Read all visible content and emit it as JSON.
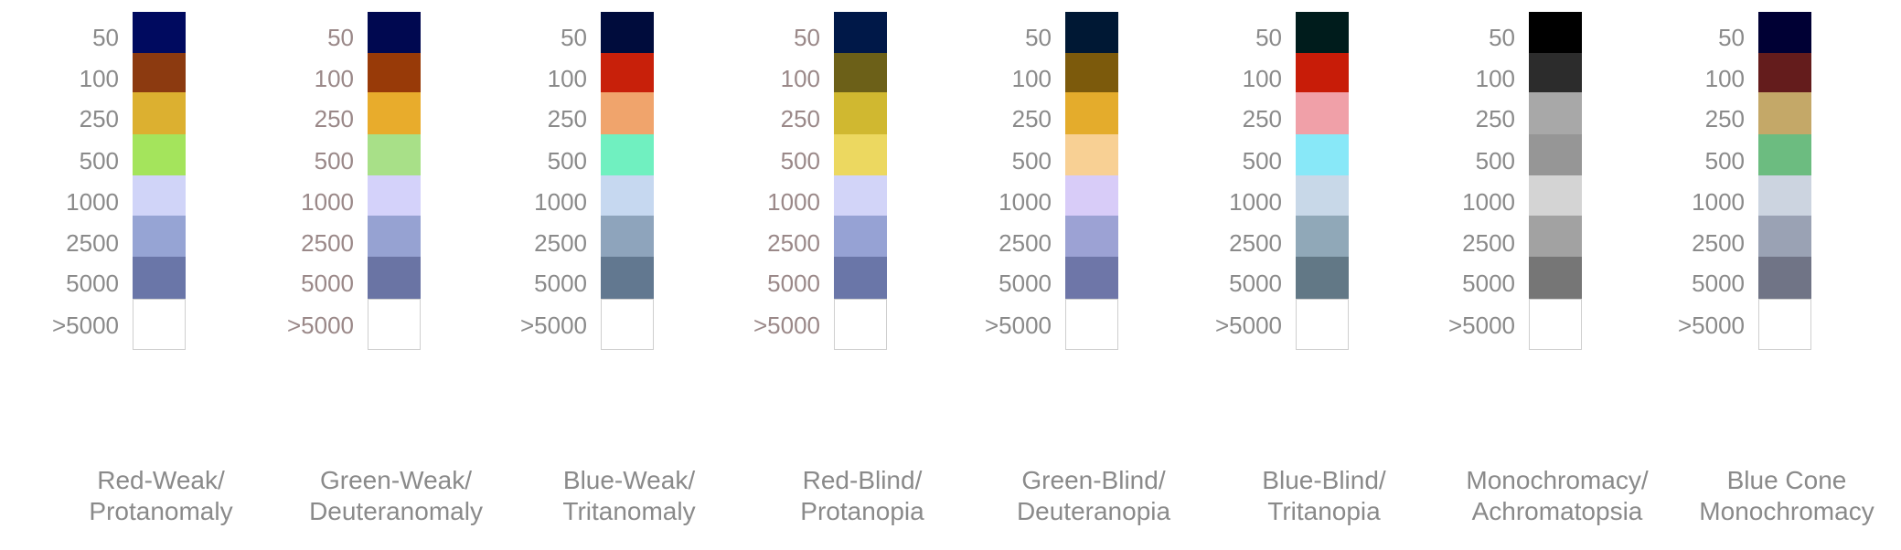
{
  "levels": [
    "50",
    "100",
    "250",
    "500",
    "1000",
    "2500",
    "5000",
    ">5000"
  ],
  "panels": [
    {
      "caption_line1": "Red-Weak/",
      "caption_line2": "Protanomaly",
      "colors": [
        "#000a5f",
        "#8c3a10",
        "#dcb030",
        "#a4e45c",
        "#d0d4f8",
        "#96a4d4",
        "#6a76a8",
        "#ffffff"
      ]
    },
    {
      "caption_line1": "Green-Weak/",
      "caption_line2": "Deuteranomaly",
      "colors": [
        "#000850",
        "#983a08",
        "#e8ac2c",
        "#a8e088",
        "#d4d2fa",
        "#96a2d2",
        "#6a74a4",
        "#ffffff"
      ]
    },
    {
      "caption_line1": "Blue-Weak/",
      "caption_line2": "Tritanomaly",
      "colors": [
        "#000c3c",
        "#c8200a",
        "#f0a46c",
        "#70f0c0",
        "#c6d8f0",
        "#8ea4bc",
        "#627890",
        "#ffffff"
      ]
    },
    {
      "caption_line1": "Red-Blind/",
      "caption_line2": "Protanopia",
      "colors": [
        "#001848",
        "#6c6018",
        "#d0b830",
        "#ecd860",
        "#d2d4f8",
        "#96a2d4",
        "#6a76a8",
        "#ffffff"
      ]
    },
    {
      "caption_line1": "Green-Blind/",
      "caption_line2": "Deuteranopia",
      "colors": [
        "#001834",
        "#7c5a0c",
        "#e4ac2c",
        "#f8d094",
        "#d8ccf8",
        "#9ca2d4",
        "#6e76a8",
        "#ffffff"
      ]
    },
    {
      "caption_line1": "Blue-Blind/",
      "caption_line2": "Tritanopia",
      "colors": [
        "#001c1c",
        "#c81c08",
        "#f0a0a8",
        "#88e8f8",
        "#c8d8e8",
        "#90a8b8",
        "#627886",
        "#ffffff"
      ]
    },
    {
      "caption_line1": "Monochromacy/",
      "caption_line2": "Achromatopsia",
      "colors": [
        "#000000",
        "#2c2c2c",
        "#a8a8a8",
        "#969696",
        "#d4d4d4",
        "#a2a2a2",
        "#767676",
        "#ffffff"
      ]
    },
    {
      "caption_line1": "Blue Cone",
      "caption_line2": "Monochromacy",
      "colors": [
        "#000034",
        "#641c1c",
        "#c4a868",
        "#6cbc80",
        "#ccd4e0",
        "#9aa2b4",
        "#707486",
        "#ffffff"
      ]
    }
  ]
}
